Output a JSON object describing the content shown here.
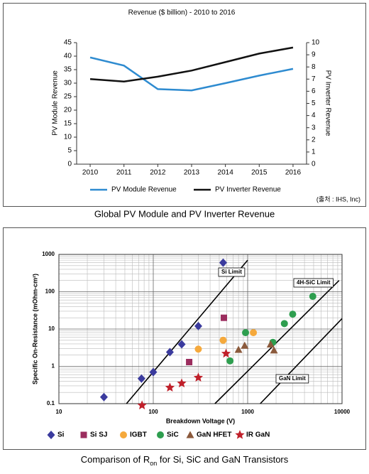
{
  "chart_data": [
    {
      "type": "line",
      "title": "Revenue ($ billion) - 2010 to 2016",
      "y_label": "PV Module Revenue",
      "y2_label": "PV Inverter Revenue",
      "x": [
        2010,
        2011,
        2012,
        2013,
        2014,
        2015,
        2016
      ],
      "xlim": [
        2009.6,
        2016.4
      ],
      "xticks": [
        2010,
        2011,
        2012,
        2013,
        2014,
        2015,
        2016
      ],
      "ylim": [
        0,
        45
      ],
      "yticks": [
        0,
        5,
        10,
        15,
        20,
        25,
        30,
        35,
        40,
        45
      ],
      "y2lim": [
        0,
        10
      ],
      "y2ticks": [
        0,
        1,
        2,
        3,
        4,
        5,
        6,
        7,
        8,
        9,
        10
      ],
      "series": [
        {
          "name": "PV Module Revenue",
          "color": "#2e8bd0",
          "values": [
            39.5,
            36.5,
            27.8,
            27.3,
            30,
            32.8,
            35.3
          ]
        },
        {
          "name": "PV Inverter Revenue",
          "color": "#111111",
          "axis": "y2",
          "values": [
            7.0,
            6.8,
            7.2,
            7.7,
            8.4,
            9.1,
            9.6
          ]
        }
      ],
      "source": "(출처 : IHS, Inc)",
      "caption": "Global PV Module and PV Inverter Revenue"
    },
    {
      "type": "scatter",
      "x_label": "Breakdown Voltage (V)",
      "y_label": "Specific On-Resistance (mOhm-cm²)",
      "log_x": true,
      "log_y": true,
      "grid": true,
      "xlim": [
        10,
        10000
      ],
      "xticks": [
        10,
        100,
        1000,
        10000
      ],
      "ylim": [
        0.1,
        1000
      ],
      "yticks": [
        0.1,
        1,
        10,
        100,
        1000
      ],
      "series": [
        {
          "name": "Si",
          "color": "#3b3b9e",
          "marker": "diamond",
          "x": [
            30,
            75,
            100,
            150,
            200,
            300,
            550
          ],
          "values": [
            0.15,
            0.47,
            0.7,
            2.4,
            3.9,
            12,
            600
          ]
        },
        {
          "name": "Si SJ",
          "color": "#9b2d5e",
          "marker": "square",
          "x": [
            240,
            560
          ],
          "values": [
            1.3,
            20
          ]
        },
        {
          "name": "IGBT",
          "color": "#f5a93c",
          "marker": "circle",
          "x": [
            300,
            550,
            1150
          ],
          "values": [
            2.9,
            5,
            8
          ]
        },
        {
          "name": "SiC",
          "color": "#2e9e4f",
          "marker": "circle",
          "x": [
            650,
            950,
            1850,
            2450,
            3000,
            4900
          ],
          "values": [
            1.4,
            8,
            4.4,
            14,
            25,
            75
          ]
        },
        {
          "name": "GaN HFET",
          "color": "#8b5a3c",
          "marker": "triangle",
          "x": [
            800,
            930,
            1750,
            1900
          ],
          "values": [
            2.8,
            3.6,
            3.9,
            2.7
          ]
        },
        {
          "name": "IR GaN",
          "color": "#c0202a",
          "marker": "star",
          "x": [
            76,
            150,
            200,
            300,
            590
          ],
          "values": [
            0.09,
            0.27,
            0.35,
            0.5,
            2.2
          ]
        }
      ],
      "limit_lines": [
        {
          "name": "Si Limit",
          "x": [
            52,
            1000
          ],
          "values": [
            0.1,
            700
          ]
        },
        {
          "name": "4H-SiC Limit",
          "x": [
            450,
            9300
          ],
          "values": [
            0.1,
            200
          ]
        },
        {
          "name": "GaN Limit",
          "x": [
            1360,
            10000
          ],
          "values": [
            0.1,
            19
          ]
        }
      ],
      "caption": [
        "Comparison of R",
        "on",
        " for Si, SiC and GaN Transistors"
      ]
    }
  ]
}
